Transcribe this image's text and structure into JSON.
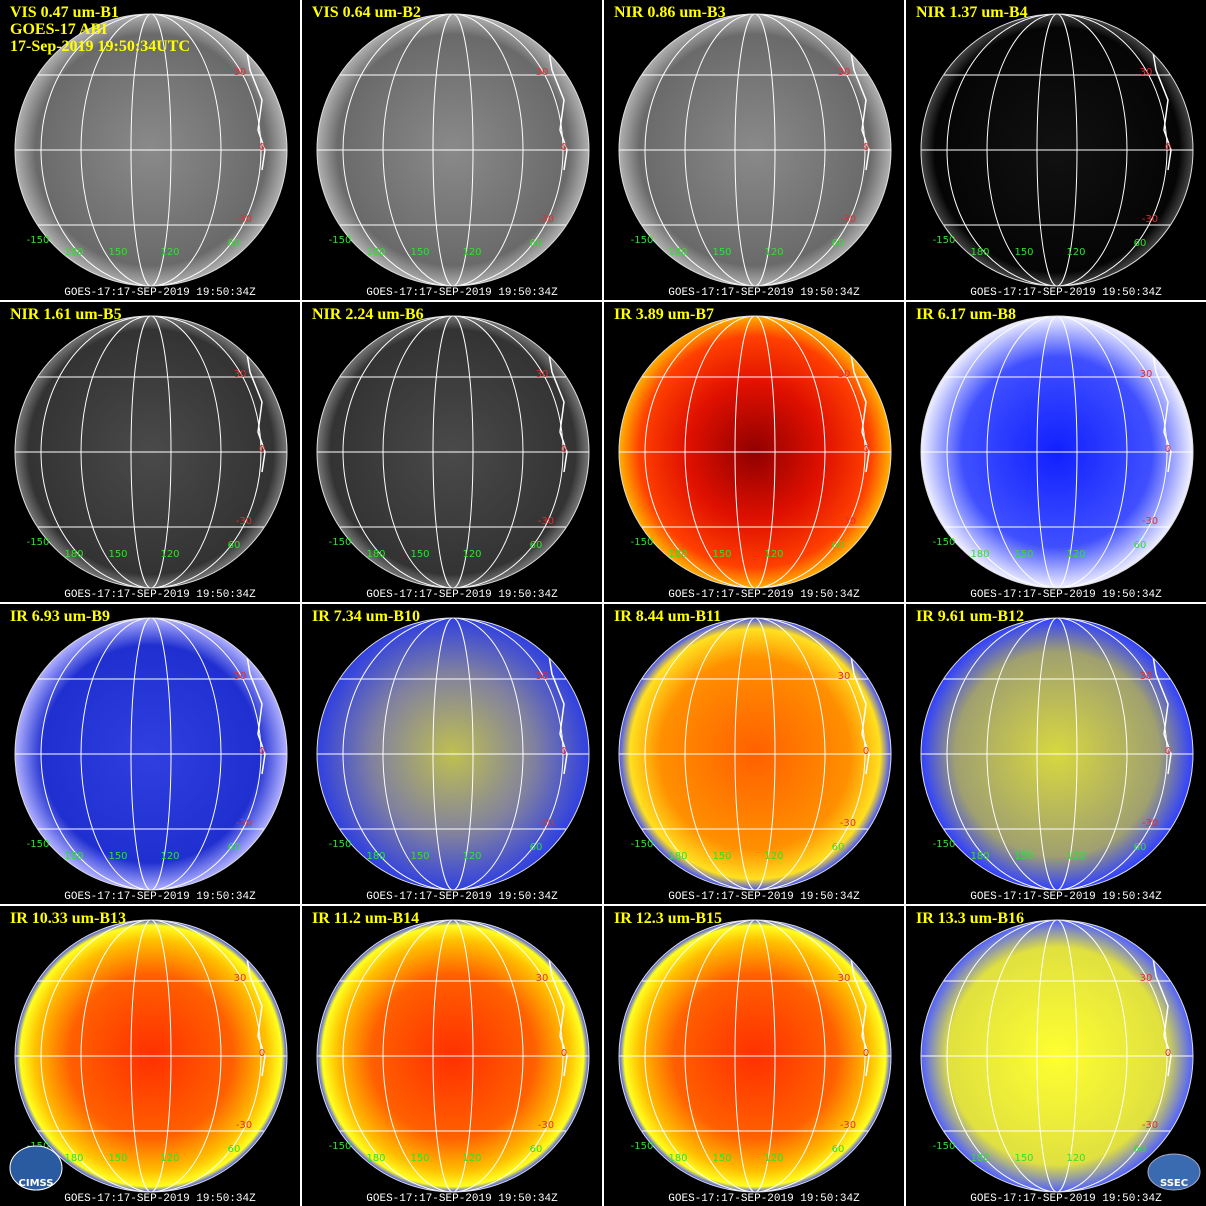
{
  "header": {
    "satellite": "GOES-17 ABI",
    "timestamp": "17-Sep-2019 19:50:34UTC"
  },
  "panels": [
    {
      "title": "VIS 0.47 um-B1",
      "footer": "GOES-17:17-SEP-2019 19:50:34Z"
    },
    {
      "title": "VIS 0.64 um-B2",
      "footer": "GOES-17:17-SEP-2019 19:50:34Z"
    },
    {
      "title": "NIR 0.86 um-B3",
      "footer": "GOES-17:17-SEP-2019 19:50:34Z"
    },
    {
      "title": "NIR 1.37 um-B4",
      "footer": "GOES-17:17-SEP-2019 19:50:34Z"
    },
    {
      "title": "NIR 1.61 um-B5",
      "footer": "GOES-17:17-SEP-2019 19:50:34Z"
    },
    {
      "title": "NIR 2.24 um-B6",
      "footer": "GOES-17:17-SEP-2019 19:50:34Z"
    },
    {
      "title": "IR 3.89 um-B7",
      "footer": "GOES-17:17-SEP-2019 19:50:34Z"
    },
    {
      "title": "IR 6.17 um-B8",
      "footer": "GOES-17:17-SEP-2019 19:50:34Z"
    },
    {
      "title": "IR 6.93 um-B9",
      "footer": "GOES-17:17-SEP-2019 19:50:34Z"
    },
    {
      "title": "IR 7.34 um-B10",
      "footer": "GOES-17:17-SEP-2019 19:50:34Z"
    },
    {
      "title": "IR 8.44 um-B11",
      "footer": "GOES-17:17-SEP-2019 19:50:34Z"
    },
    {
      "title": "IR 9.61 um-B12",
      "footer": "GOES-17:17-SEP-2019 19:50:34Z"
    },
    {
      "title": "IR 10.33 um-B13",
      "footer": "GOES-17:17-SEP-2019 19:50:34Z"
    },
    {
      "title": "IR 11.2 um-B14",
      "footer": "GOES-17:17-SEP-2019 19:50:34Z"
    },
    {
      "title": "IR 12.3 um-B15",
      "footer": "GOES-17:17-SEP-2019 19:50:34Z"
    },
    {
      "title": "IR 13.3 um-B16",
      "footer": "GOES-17:17-SEP-2019 19:50:34Z"
    }
  ],
  "globe_labels": {
    "lat": [
      "30",
      "0",
      "-30"
    ],
    "lon": [
      "-150",
      "180",
      "150",
      "120",
      "60"
    ]
  },
  "logos": {
    "left": "CIMSS",
    "right": "SSEC"
  }
}
